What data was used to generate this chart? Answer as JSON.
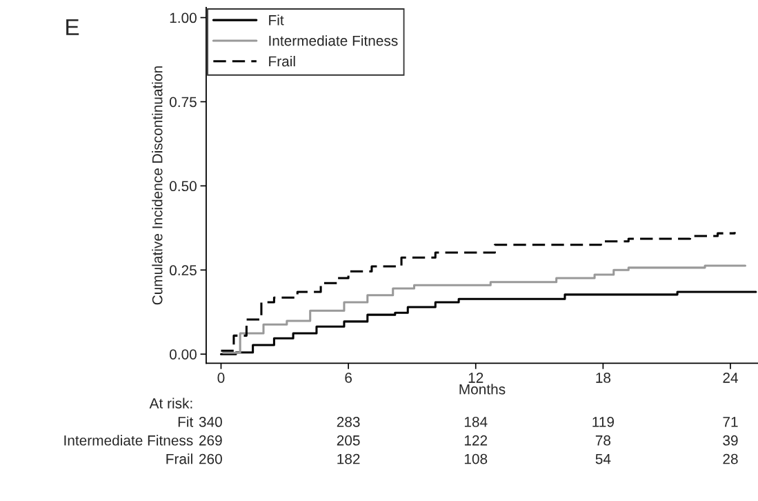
{
  "chart_data": {
    "type": "step",
    "ylabel": "Cumulative Incidence Discontinuation",
    "xlabel": "Months",
    "xlim": [
      -0.7,
      25.3
    ],
    "ylim": [
      -0.027,
      1.03
    ],
    "xticks": [
      0,
      6,
      12,
      18,
      24
    ],
    "yticks": [
      {
        "value": 0,
        "label": "0.00"
      },
      {
        "value": 0.25,
        "label": "0.25"
      },
      {
        "value": 0.5,
        "label": "0.50"
      },
      {
        "value": 0.75,
        "label": "0.75"
      },
      {
        "value": 1,
        "label": "1.00"
      }
    ],
    "grid": false,
    "legend": "top left",
    "series": [
      {
        "name": "Fit",
        "color": "#000000",
        "line_style": "solid",
        "x": [
          0,
          0.7,
          1.5,
          2.5,
          3.4,
          4.5,
          5.8,
          6.9,
          8.2,
          8.8,
          10.1,
          11.2,
          16.2,
          21.5,
          25.2
        ],
        "values": [
          0,
          0.005,
          0.027,
          0.047,
          0.062,
          0.082,
          0.097,
          0.117,
          0.123,
          0.14,
          0.154,
          0.164,
          0.177,
          0.185,
          0.185
        ]
      },
      {
        "name": "Intermediate Fitness",
        "color": "#999999",
        "line_style": "solid",
        "x": [
          0.1,
          0.9,
          2.0,
          3.1,
          4.2,
          5.8,
          6.9,
          8.1,
          9.1,
          12.7,
          15.8,
          17.6,
          18.5,
          19.2,
          22.8,
          24.7
        ],
        "values": [
          0.004,
          0.062,
          0.088,
          0.099,
          0.129,
          0.154,
          0.175,
          0.195,
          0.205,
          0.214,
          0.226,
          0.236,
          0.25,
          0.257,
          0.263,
          0.263
        ]
      },
      {
        "name": "Frail",
        "color": "#000000",
        "line_style": "dashed",
        "x": [
          0,
          0.6,
          1.2,
          1.9,
          2.5,
          3.6,
          4.7,
          5.5,
          6.0,
          7.1,
          8.5,
          10.1,
          12.9,
          17.9,
          19.2,
          22.1,
          23.4,
          24.2
        ],
        "values": [
          0.01,
          0.055,
          0.103,
          0.154,
          0.168,
          0.185,
          0.211,
          0.226,
          0.246,
          0.261,
          0.287,
          0.302,
          0.325,
          0.335,
          0.343,
          0.351,
          0.359,
          0.363
        ]
      }
    ],
    "annotations": [
      "E",
      "At risk:",
      "Fit",
      "340",
      "283",
      "184",
      "119",
      "71",
      "Intermediate Fitness",
      "269",
      "205",
      "122",
      "78",
      "39",
      "Frail",
      "260",
      "182",
      "108",
      "54",
      "28"
    ]
  }
}
